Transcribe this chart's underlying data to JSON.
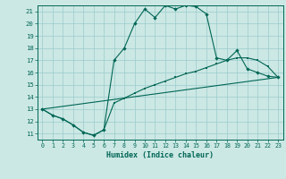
{
  "title": "",
  "xlabel": "Humidex (Indice chaleur)",
  "bg_color": "#cce8e4",
  "line_color": "#006655",
  "grid_color": "#99cccc",
  "xlim": [
    -0.5,
    23.5
  ],
  "ylim": [
    10.5,
    21.5
  ],
  "yticks": [
    11,
    12,
    13,
    14,
    15,
    16,
    17,
    18,
    19,
    20,
    21
  ],
  "xticks": [
    0,
    1,
    2,
    3,
    4,
    5,
    6,
    7,
    8,
    9,
    10,
    11,
    12,
    13,
    14,
    15,
    16,
    17,
    18,
    19,
    20,
    21,
    22,
    23
  ],
  "series1_x": [
    0,
    1,
    2,
    3,
    4,
    5,
    6,
    7,
    8,
    9,
    10,
    11,
    12,
    13,
    14,
    15,
    16,
    17,
    18,
    19,
    20,
    21,
    22,
    23
  ],
  "series1_y": [
    13.0,
    12.5,
    12.2,
    11.7,
    11.1,
    10.85,
    11.3,
    17.0,
    18.0,
    20.0,
    21.2,
    20.5,
    21.5,
    21.2,
    21.5,
    21.4,
    20.8,
    17.2,
    17.0,
    17.8,
    16.3,
    16.0,
    15.7,
    15.6
  ],
  "series2_x": [
    0,
    1,
    2,
    3,
    4,
    5,
    6,
    7,
    8,
    9,
    10,
    11,
    12,
    13,
    14,
    15,
    16,
    17,
    18,
    19,
    20,
    21,
    22,
    23
  ],
  "series2_y": [
    13.0,
    12.5,
    12.2,
    11.7,
    11.1,
    10.85,
    11.3,
    13.5,
    13.9,
    14.3,
    14.7,
    15.0,
    15.3,
    15.6,
    15.9,
    16.1,
    16.4,
    16.7,
    17.0,
    17.2,
    17.2,
    17.0,
    16.5,
    15.6
  ],
  "series3_x": [
    0,
    23
  ],
  "series3_y": [
    13.0,
    15.6
  ]
}
